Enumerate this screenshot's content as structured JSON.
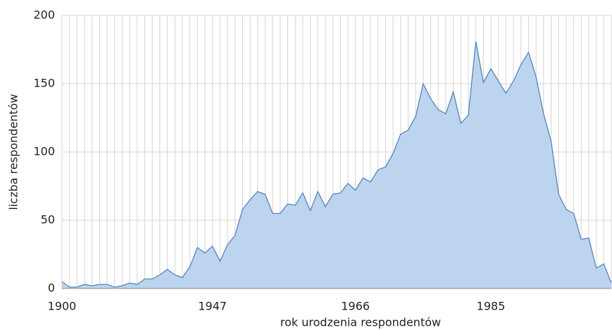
{
  "chart_data": {
    "type": "area",
    "x_label": "rok urodzenia respondentów",
    "y_label": "liczba respondentów",
    "categories": [
      "1900",
      null,
      null,
      null,
      null,
      null,
      null,
      null,
      null,
      null,
      null,
      null,
      null,
      null,
      null,
      null,
      null,
      null,
      null,
      null,
      "1947",
      null,
      null,
      null,
      null,
      null,
      null,
      null,
      null,
      null,
      null,
      null,
      null,
      null,
      null,
      null,
      null,
      null,
      null,
      "1966",
      null,
      null,
      null,
      null,
      null,
      null,
      null,
      null,
      null,
      null,
      null,
      null,
      null,
      null,
      null,
      null,
      null,
      "1985",
      null,
      null,
      null,
      null,
      null,
      null,
      null,
      null,
      null,
      null,
      null,
      null,
      null,
      null,
      null,
      null
    ],
    "values": [
      5,
      1,
      1,
      3,
      2,
      3,
      3,
      1,
      2,
      4,
      3,
      7,
      7,
      10,
      14,
      10,
      8,
      16,
      30,
      26,
      31,
      20,
      32,
      39,
      58,
      65,
      71,
      69,
      55,
      55,
      62,
      61,
      70,
      57,
      71,
      60,
      69,
      70,
      77,
      72,
      81,
      78,
      87,
      89,
      99,
      113,
      116,
      126,
      150,
      139,
      131,
      128,
      144,
      121,
      127,
      181,
      151,
      161,
      152,
      143,
      152,
      164,
      173,
      155,
      128,
      108,
      69,
      58,
      55,
      36,
      37,
      15,
      18,
      4
    ],
    "color": "#4a7ebb",
    "fill": "#bdd4ee",
    "ylim": [
      0,
      200
    ],
    "yticks": [
      0,
      50,
      100,
      150,
      200
    ],
    "grid": true
  }
}
